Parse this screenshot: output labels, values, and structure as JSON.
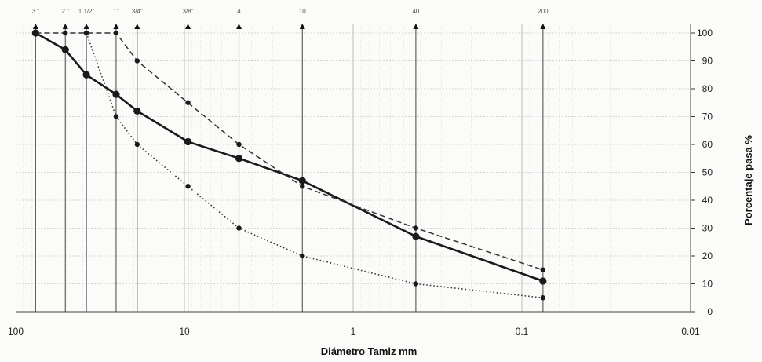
{
  "chart_data": {
    "type": "line",
    "title": "",
    "xlabel": "Diámetro Tamiz mm",
    "ylabel": "Porcentaje pasa %",
    "x_scale": "log",
    "x_reversed": true,
    "xlim": [
      100,
      0.01
    ],
    "ylim": [
      0,
      100
    ],
    "x_ticks": [
      {
        "value": 100,
        "label": "100"
      },
      {
        "value": 10,
        "label": "10"
      },
      {
        "value": 1,
        "label": "1"
      },
      {
        "value": 0.1,
        "label": "0.1"
      },
      {
        "value": 0.01,
        "label": "0.01"
      }
    ],
    "y_ticks": [
      "0",
      "10",
      "20",
      "30",
      "40",
      "50",
      "60",
      "70",
      "80",
      "90",
      "100"
    ],
    "grid": true,
    "sieves": [
      {
        "label": "3 \"",
        "value": 76.2
      },
      {
        "label": "2 \"",
        "value": 50.8
      },
      {
        "label": "1 1/2\"",
        "value": 38.1
      },
      {
        "label": "1\"",
        "value": 25.4
      },
      {
        "label": "3/4\"",
        "value": 19.05
      },
      {
        "label": "3/8\"",
        "value": 9.525
      },
      {
        "label": "4",
        "value": 4.75
      },
      {
        "label": "10",
        "value": 2.0
      },
      {
        "label": "40",
        "value": 0.425
      },
      {
        "label": "200",
        "value": 0.075
      }
    ],
    "series": [
      {
        "style": "solid",
        "color": "#1a1a1a",
        "x": [
          76.2,
          50.8,
          38.1,
          25.4,
          19.05,
          9.525,
          4.75,
          2.0,
          0.425,
          0.075
        ],
        "y": [
          100,
          94,
          85,
          78,
          72,
          61,
          55,
          47,
          27,
          11
        ]
      },
      {
        "style": "dashed",
        "color": "#333333",
        "x": [
          76.2,
          50.8,
          38.1,
          25.4,
          19.05,
          9.525,
          4.75,
          2.0,
          0.425,
          0.075
        ],
        "y": [
          100,
          100,
          100,
          100,
          90,
          75,
          60,
          45,
          30,
          15
        ]
      },
      {
        "style": "dotted",
        "color": "#333333",
        "x": [
          38.1,
          25.4,
          19.05,
          9.525,
          4.75,
          2.0,
          0.425,
          0.075
        ],
        "y": [
          100,
          70,
          60,
          45,
          30,
          20,
          10,
          5
        ]
      }
    ]
  }
}
